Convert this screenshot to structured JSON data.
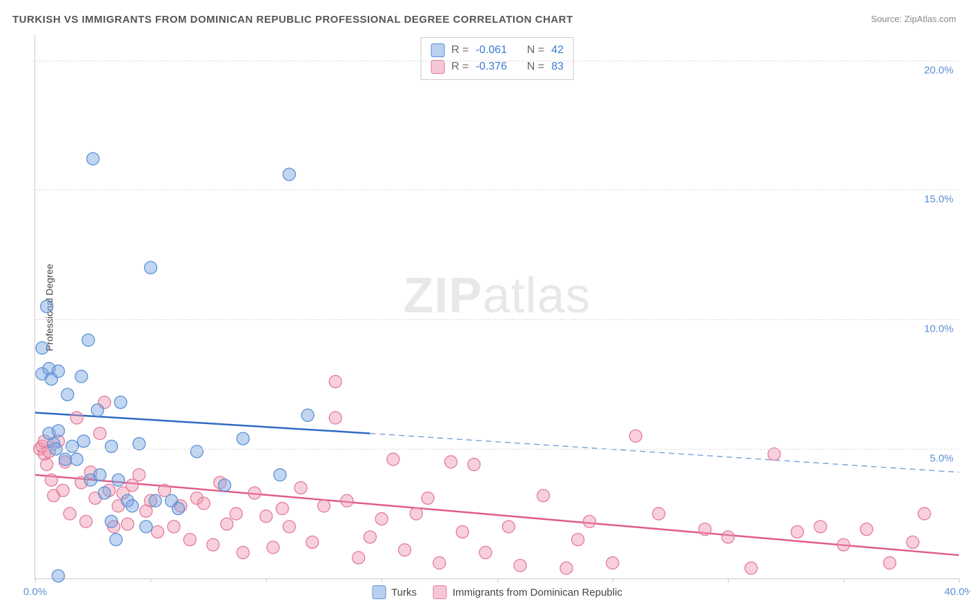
{
  "title": "TURKISH VS IMMIGRANTS FROM DOMINICAN REPUBLIC PROFESSIONAL DEGREE CORRELATION CHART",
  "source_label": "Source: ",
  "source_name": "ZipAtlas.com",
  "watermark_a": "ZIP",
  "watermark_b": "atlas",
  "ylabel": "Professional Degree",
  "chart": {
    "type": "scatter",
    "xlim": [
      0,
      40
    ],
    "ylim": [
      0,
      21
    ],
    "x_tick_step": 5,
    "x_label_ticks": [
      0,
      40
    ],
    "x_label_fmt": [
      "0.0%",
      "40.0%"
    ],
    "y_ticks": [
      5,
      10,
      15,
      20
    ],
    "y_tick_labels": [
      "5.0%",
      "10.0%",
      "15.0%",
      "20.0%"
    ],
    "marker_radius": 9,
    "background_color": "#ffffff",
    "grid_color": "#dddddd",
    "axis_color": "#cccccc",
    "label_color": "#5b8fd6",
    "series": {
      "turks": {
        "label": "Turks",
        "color_fill": "rgba(120,165,225,0.45)",
        "color_stroke": "#5b8fd6",
        "R": "-0.061",
        "N": "42",
        "trend": {
          "x_start": 0,
          "y_start": 6.4,
          "x_solid_end": 14.5,
          "y_solid_end": 5.6,
          "x_dash_end": 40,
          "y_dash_end": 4.1,
          "color_solid": "#2f6ac4",
          "color_dash": "#6a9ad8"
        },
        "points": [
          [
            0.3,
            8.9
          ],
          [
            0.3,
            7.9
          ],
          [
            0.5,
            10.5
          ],
          [
            0.6,
            5.6
          ],
          [
            0.6,
            8.1
          ],
          [
            0.7,
            7.7
          ],
          [
            0.8,
            5.2
          ],
          [
            0.9,
            5.0
          ],
          [
            1.0,
            8.0
          ],
          [
            1.0,
            5.7
          ],
          [
            1.0,
            0.1
          ],
          [
            1.3,
            4.6
          ],
          [
            1.4,
            7.1
          ],
          [
            1.6,
            5.1
          ],
          [
            1.8,
            4.6
          ],
          [
            2.0,
            7.8
          ],
          [
            2.1,
            5.3
          ],
          [
            2.3,
            9.2
          ],
          [
            2.4,
            3.8
          ],
          [
            2.5,
            16.2
          ],
          [
            2.7,
            6.5
          ],
          [
            2.8,
            4.0
          ],
          [
            3.0,
            3.3
          ],
          [
            3.3,
            2.2
          ],
          [
            3.3,
            5.1
          ],
          [
            3.5,
            1.5
          ],
          [
            3.6,
            3.8
          ],
          [
            3.7,
            6.8
          ],
          [
            4.0,
            3.0
          ],
          [
            4.2,
            2.8
          ],
          [
            4.5,
            5.2
          ],
          [
            4.8,
            2.0
          ],
          [
            5.0,
            12.0
          ],
          [
            5.2,
            3.0
          ],
          [
            5.9,
            3.0
          ],
          [
            6.2,
            2.7
          ],
          [
            7.0,
            4.9
          ],
          [
            8.2,
            3.6
          ],
          [
            9.0,
            5.4
          ],
          [
            10.6,
            4.0
          ],
          [
            11.0,
            15.6
          ],
          [
            11.8,
            6.3
          ]
        ]
      },
      "dominican": {
        "label": "Immigrants from Dominican Republic",
        "color_fill": "rgba(240,150,175,0.45)",
        "color_stroke": "#e27a9a",
        "R": "-0.376",
        "N": "83",
        "trend": {
          "x_start": 0,
          "y_start": 4.0,
          "x_end": 40,
          "y_end": 0.9,
          "color": "#e05c86"
        },
        "points": [
          [
            0.2,
            5.0
          ],
          [
            0.3,
            5.1
          ],
          [
            0.4,
            4.8
          ],
          [
            0.4,
            5.3
          ],
          [
            0.5,
            4.4
          ],
          [
            0.6,
            4.9
          ],
          [
            0.7,
            3.8
          ],
          [
            0.8,
            3.2
          ],
          [
            1.0,
            5.3
          ],
          [
            1.2,
            3.4
          ],
          [
            1.3,
            4.5
          ],
          [
            1.5,
            2.5
          ],
          [
            1.8,
            6.2
          ],
          [
            2.0,
            3.7
          ],
          [
            2.2,
            2.2
          ],
          [
            2.4,
            4.1
          ],
          [
            2.6,
            3.1
          ],
          [
            2.8,
            5.6
          ],
          [
            3.0,
            6.8
          ],
          [
            3.2,
            3.4
          ],
          [
            3.4,
            2.0
          ],
          [
            3.6,
            2.8
          ],
          [
            3.8,
            3.3
          ],
          [
            4.0,
            2.1
          ],
          [
            4.2,
            3.6
          ],
          [
            4.5,
            4.0
          ],
          [
            4.8,
            2.6
          ],
          [
            5.0,
            3.0
          ],
          [
            5.3,
            1.8
          ],
          [
            5.6,
            3.4
          ],
          [
            6.0,
            2.0
          ],
          [
            6.3,
            2.8
          ],
          [
            6.7,
            1.5
          ],
          [
            7.0,
            3.1
          ],
          [
            7.3,
            2.9
          ],
          [
            7.7,
            1.3
          ],
          [
            8.0,
            3.7
          ],
          [
            8.3,
            2.1
          ],
          [
            8.7,
            2.5
          ],
          [
            9.0,
            1.0
          ],
          [
            9.5,
            3.3
          ],
          [
            10.0,
            2.4
          ],
          [
            10.3,
            1.2
          ],
          [
            10.7,
            2.7
          ],
          [
            11.0,
            2.0
          ],
          [
            11.5,
            3.5
          ],
          [
            12.0,
            1.4
          ],
          [
            12.5,
            2.8
          ],
          [
            13.0,
            7.6
          ],
          [
            13.0,
            6.2
          ],
          [
            13.5,
            3.0
          ],
          [
            14.0,
            0.8
          ],
          [
            14.5,
            1.6
          ],
          [
            15.0,
            2.3
          ],
          [
            15.5,
            4.6
          ],
          [
            16.0,
            1.1
          ],
          [
            16.5,
            2.5
          ],
          [
            17.0,
            3.1
          ],
          [
            17.5,
            0.6
          ],
          [
            18.0,
            4.5
          ],
          [
            18.5,
            1.8
          ],
          [
            19.0,
            4.4
          ],
          [
            19.5,
            1.0
          ],
          [
            20.5,
            2.0
          ],
          [
            21.0,
            0.5
          ],
          [
            22.0,
            3.2
          ],
          [
            23.0,
            0.4
          ],
          [
            23.5,
            1.5
          ],
          [
            24.0,
            2.2
          ],
          [
            25.0,
            0.6
          ],
          [
            26.0,
            5.5
          ],
          [
            27.0,
            2.5
          ],
          [
            29.0,
            1.9
          ],
          [
            30.0,
            1.6
          ],
          [
            31.0,
            0.4
          ],
          [
            32.0,
            4.8
          ],
          [
            33.0,
            1.8
          ],
          [
            34.0,
            2.0
          ],
          [
            35.0,
            1.3
          ],
          [
            36.0,
            1.9
          ],
          [
            37.0,
            0.6
          ],
          [
            38.0,
            1.4
          ],
          [
            38.5,
            2.5
          ]
        ]
      }
    }
  },
  "stats_legend": {
    "Rlabel": "R =",
    "Nlabel": "N ="
  }
}
